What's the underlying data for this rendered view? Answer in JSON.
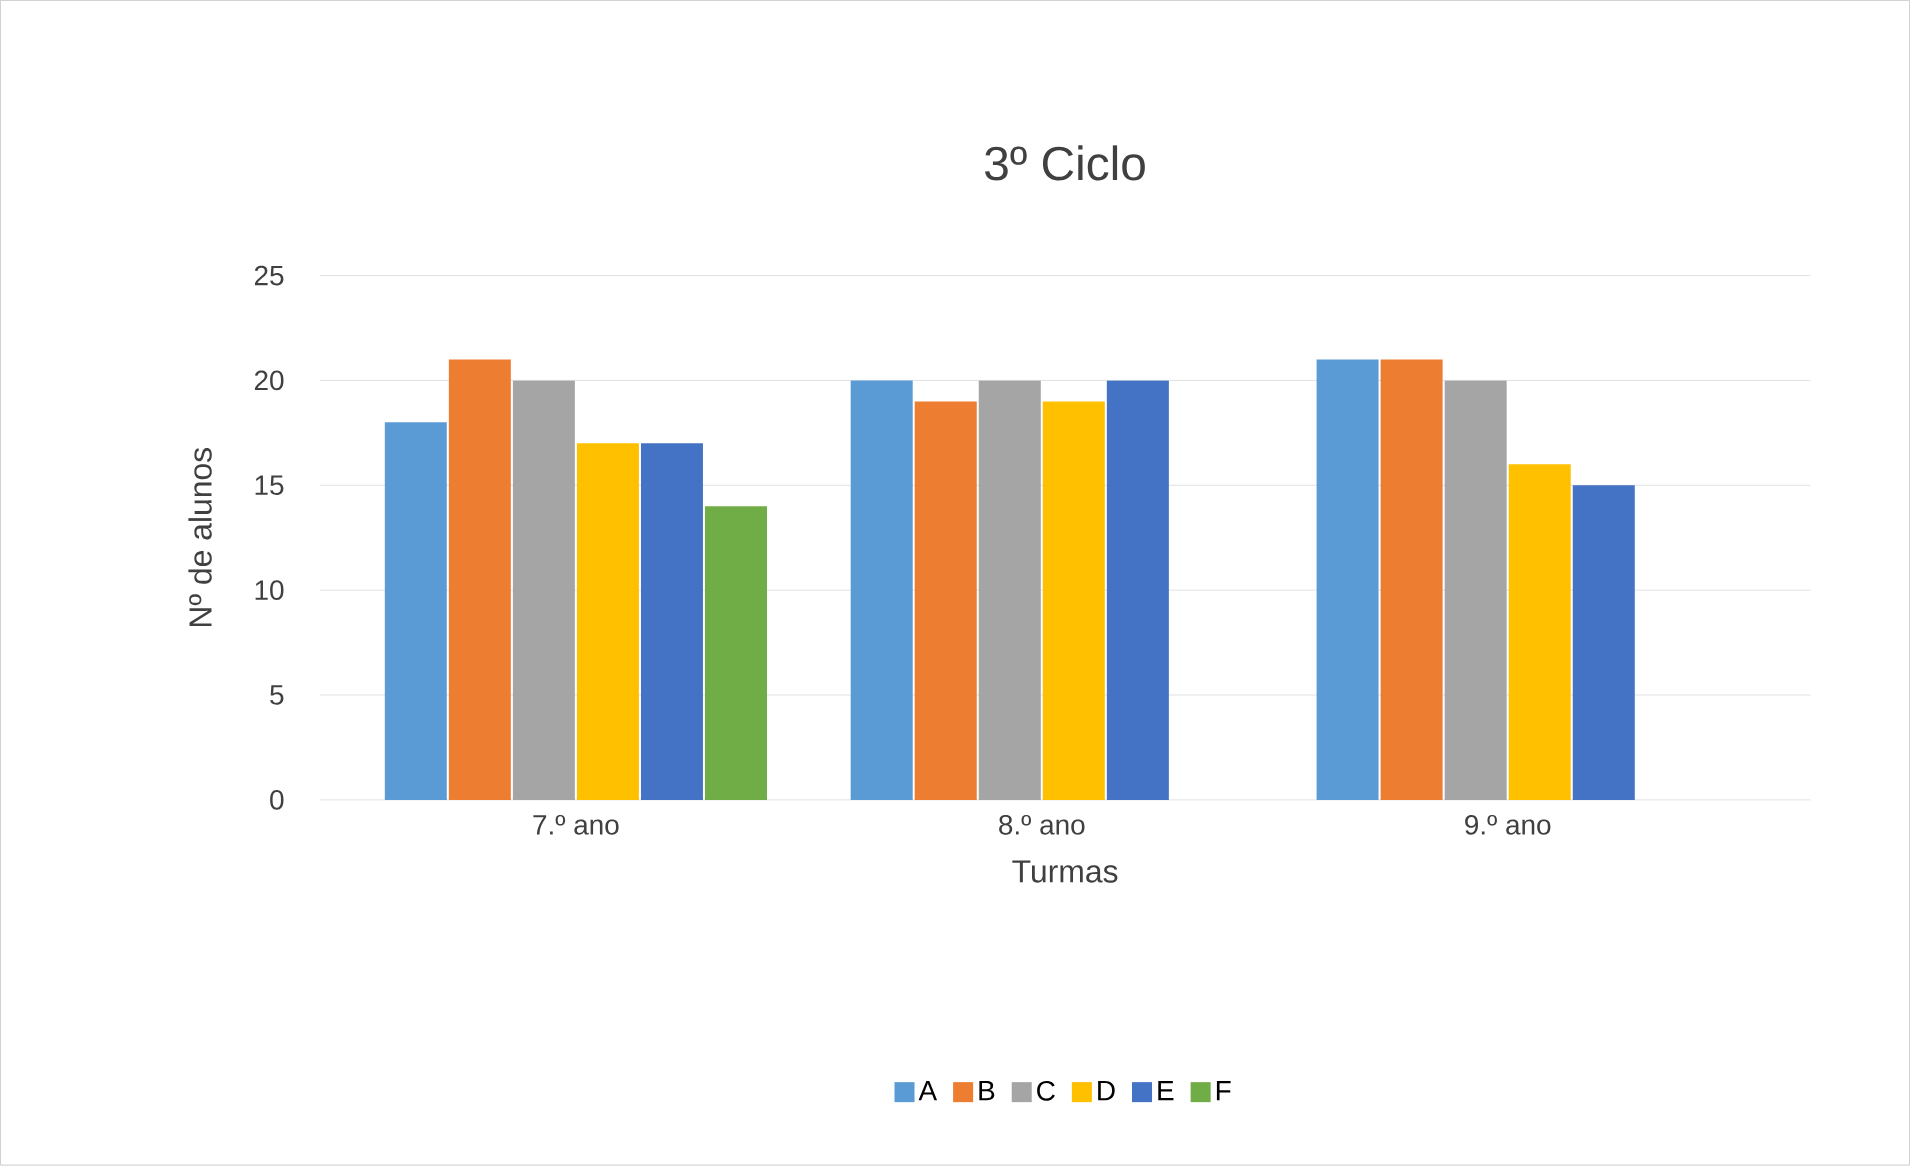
{
  "chart_data": {
    "type": "bar",
    "title": "3º Ciclo",
    "xlabel": "Turmas",
    "ylabel": "Nº de alunos",
    "categories": [
      "7.º ano",
      "8.º ano",
      "9.º ano"
    ],
    "series": [
      {
        "name": "A",
        "color": "#5b9bd5",
        "values": [
          18,
          20,
          21
        ]
      },
      {
        "name": "B",
        "color": "#ed7d31",
        "values": [
          21,
          19,
          21
        ]
      },
      {
        "name": "C",
        "color": "#a5a5a5",
        "values": [
          20,
          20,
          20
        ]
      },
      {
        "name": "D",
        "color": "#ffc000",
        "values": [
          17,
          19,
          16
        ]
      },
      {
        "name": "E",
        "color": "#4472c4",
        "values": [
          17,
          20,
          15
        ]
      },
      {
        "name": "F",
        "color": "#70ad47",
        "values": [
          14,
          null,
          null
        ]
      }
    ],
    "ylim": [
      0,
      25
    ],
    "yticks": [
      0,
      5,
      10,
      15,
      20,
      25
    ],
    "grid": "y",
    "legend": "bottom"
  }
}
